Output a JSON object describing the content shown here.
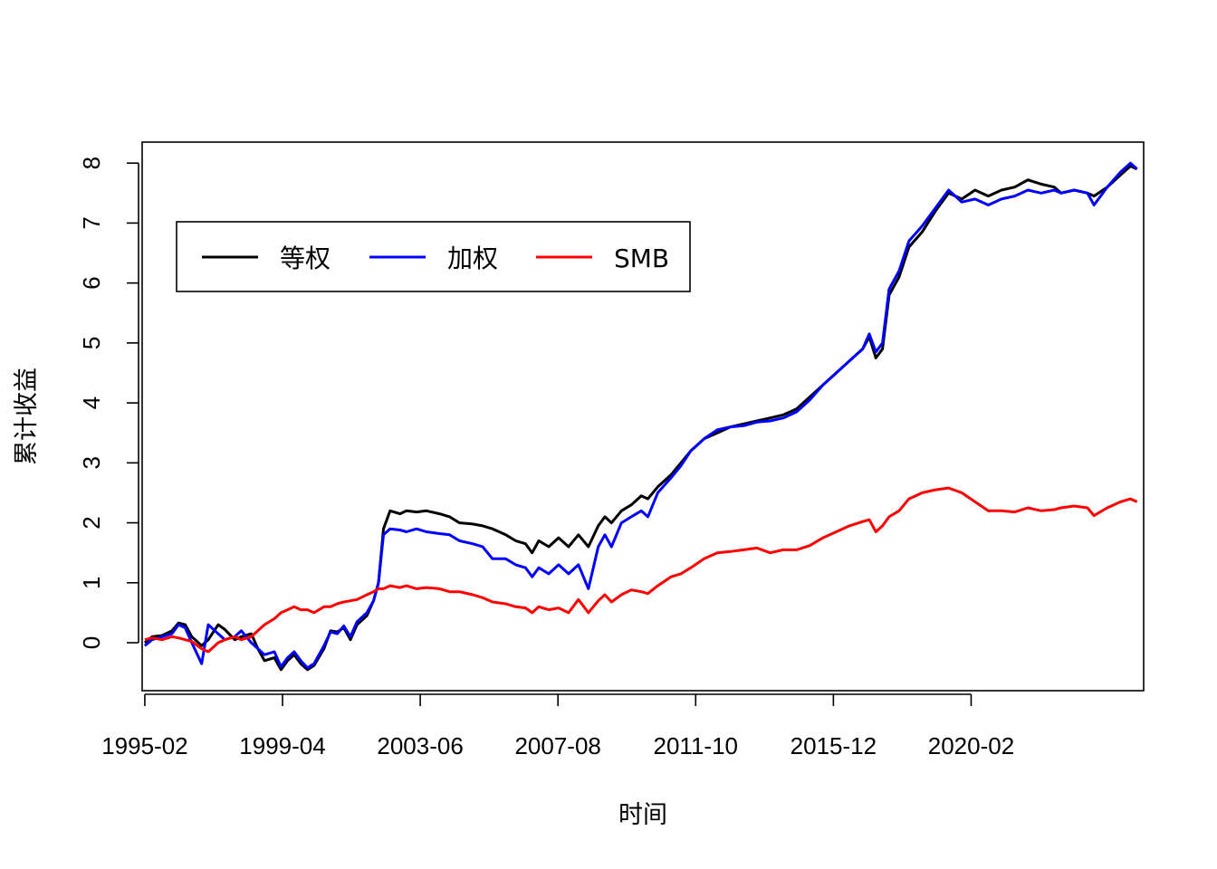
{
  "chart_data": {
    "type": "line",
    "xlabel": "时间",
    "ylabel": "累计收益",
    "x_tick_labels": [
      "1995-02",
      "1999-04",
      "2003-06",
      "2007-08",
      "2011-10",
      "2015-12",
      "2020-02"
    ],
    "y_ticks": [
      0,
      1,
      2,
      3,
      4,
      5,
      6,
      7,
      8
    ],
    "y_tick_labels": [
      "0",
      "1",
      "2",
      "3",
      "4",
      "5",
      "6",
      "7",
      "8"
    ],
    "xlim": [
      1995.0,
      2025.3
    ],
    "ylim": [
      -0.8,
      8.35
    ],
    "grid": false,
    "legend_position": "top-left",
    "series": [
      {
        "name": "等权",
        "color": "#000000",
        "points": [
          [
            1995.08,
            0.0
          ],
          [
            1995.3,
            0.1
          ],
          [
            1995.6,
            0.12
          ],
          [
            1995.9,
            0.2
          ],
          [
            1996.1,
            0.33
          ],
          [
            1996.3,
            0.3
          ],
          [
            1996.5,
            0.1
          ],
          [
            1996.8,
            -0.05
          ],
          [
            1997.0,
            0.05
          ],
          [
            1997.3,
            0.3
          ],
          [
            1997.5,
            0.22
          ],
          [
            1997.8,
            0.05
          ],
          [
            1998.0,
            0.1
          ],
          [
            1998.3,
            0.15
          ],
          [
            1998.5,
            -0.1
          ],
          [
            1998.7,
            -0.3
          ],
          [
            1999.0,
            -0.25
          ],
          [
            1999.2,
            -0.45
          ],
          [
            1999.4,
            -0.3
          ],
          [
            1999.6,
            -0.2
          ],
          [
            1999.8,
            -0.35
          ],
          [
            2000.0,
            -0.45
          ],
          [
            2000.2,
            -0.38
          ],
          [
            2000.5,
            -0.1
          ],
          [
            2000.7,
            0.2
          ],
          [
            2000.9,
            0.18
          ],
          [
            2001.1,
            0.25
          ],
          [
            2001.3,
            0.05
          ],
          [
            2001.5,
            0.3
          ],
          [
            2001.8,
            0.45
          ],
          [
            2002.0,
            0.7
          ],
          [
            2002.15,
            1.0
          ],
          [
            2002.3,
            1.9
          ],
          [
            2002.5,
            2.2
          ],
          [
            2002.8,
            2.15
          ],
          [
            2003.0,
            2.2
          ],
          [
            2003.3,
            2.18
          ],
          [
            2003.6,
            2.2
          ],
          [
            2004.0,
            2.15
          ],
          [
            2004.3,
            2.1
          ],
          [
            2004.6,
            2.0
          ],
          [
            2005.0,
            1.98
          ],
          [
            2005.3,
            1.95
          ],
          [
            2005.6,
            1.9
          ],
          [
            2006.0,
            1.8
          ],
          [
            2006.3,
            1.7
          ],
          [
            2006.6,
            1.65
          ],
          [
            2006.8,
            1.5
          ],
          [
            2007.0,
            1.7
          ],
          [
            2007.3,
            1.6
          ],
          [
            2007.6,
            1.75
          ],
          [
            2007.9,
            1.6
          ],
          [
            2008.2,
            1.8
          ],
          [
            2008.5,
            1.6
          ],
          [
            2008.8,
            1.95
          ],
          [
            2009.0,
            2.1
          ],
          [
            2009.2,
            2.0
          ],
          [
            2009.5,
            2.2
          ],
          [
            2009.8,
            2.3
          ],
          [
            2010.1,
            2.45
          ],
          [
            2010.3,
            2.4
          ],
          [
            2010.6,
            2.6
          ],
          [
            2011.0,
            2.8
          ],
          [
            2011.3,
            3.0
          ],
          [
            2011.6,
            3.2
          ],
          [
            2012.0,
            3.4
          ],
          [
            2012.4,
            3.5
          ],
          [
            2012.8,
            3.6
          ],
          [
            2013.2,
            3.65
          ],
          [
            2013.6,
            3.7
          ],
          [
            2014.0,
            3.75
          ],
          [
            2014.4,
            3.8
          ],
          [
            2014.8,
            3.9
          ],
          [
            2015.2,
            4.1
          ],
          [
            2015.6,
            4.3
          ],
          [
            2016.0,
            4.5
          ],
          [
            2016.4,
            4.7
          ],
          [
            2016.8,
            4.9
          ],
          [
            2017.0,
            5.1
          ],
          [
            2017.2,
            4.75
          ],
          [
            2017.4,
            4.9
          ],
          [
            2017.6,
            5.8
          ],
          [
            2017.9,
            6.1
          ],
          [
            2018.2,
            6.6
          ],
          [
            2018.6,
            6.85
          ],
          [
            2019.0,
            7.2
          ],
          [
            2019.4,
            7.5
          ],
          [
            2019.8,
            7.4
          ],
          [
            2020.2,
            7.55
          ],
          [
            2020.6,
            7.45
          ],
          [
            2021.0,
            7.55
          ],
          [
            2021.4,
            7.6
          ],
          [
            2021.8,
            7.72
          ],
          [
            2022.2,
            7.65
          ],
          [
            2022.6,
            7.6
          ],
          [
            2022.8,
            7.5
          ],
          [
            2023.2,
            7.55
          ],
          [
            2023.6,
            7.5
          ],
          [
            2023.8,
            7.45
          ],
          [
            2024.2,
            7.6
          ],
          [
            2024.6,
            7.8
          ],
          [
            2024.9,
            7.95
          ],
          [
            2025.1,
            7.9
          ]
        ]
      },
      {
        "name": "加权",
        "color": "#0000ff",
        "points": [
          [
            1995.08,
            -0.05
          ],
          [
            1995.3,
            0.05
          ],
          [
            1995.6,
            0.1
          ],
          [
            1995.9,
            0.15
          ],
          [
            1996.1,
            0.3
          ],
          [
            1996.3,
            0.25
          ],
          [
            1996.5,
            0.0
          ],
          [
            1996.8,
            -0.35
          ],
          [
            1997.0,
            0.3
          ],
          [
            1997.3,
            0.15
          ],
          [
            1997.5,
            0.05
          ],
          [
            1997.8,
            0.1
          ],
          [
            1998.0,
            0.2
          ],
          [
            1998.3,
            0.0
          ],
          [
            1998.5,
            -0.1
          ],
          [
            1998.7,
            -0.2
          ],
          [
            1999.0,
            -0.15
          ],
          [
            1999.2,
            -0.4
          ],
          [
            1999.4,
            -0.25
          ],
          [
            1999.6,
            -0.15
          ],
          [
            1999.8,
            -0.3
          ],
          [
            2000.0,
            -0.42
          ],
          [
            2000.2,
            -0.35
          ],
          [
            2000.5,
            -0.05
          ],
          [
            2000.7,
            0.18
          ],
          [
            2000.9,
            0.15
          ],
          [
            2001.1,
            0.28
          ],
          [
            2001.3,
            0.1
          ],
          [
            2001.5,
            0.35
          ],
          [
            2001.8,
            0.5
          ],
          [
            2002.0,
            0.7
          ],
          [
            2002.15,
            1.0
          ],
          [
            2002.3,
            1.8
          ],
          [
            2002.5,
            1.9
          ],
          [
            2002.8,
            1.88
          ],
          [
            2003.0,
            1.85
          ],
          [
            2003.3,
            1.9
          ],
          [
            2003.6,
            1.85
          ],
          [
            2004.0,
            1.82
          ],
          [
            2004.3,
            1.8
          ],
          [
            2004.6,
            1.7
          ],
          [
            2005.0,
            1.65
          ],
          [
            2005.3,
            1.6
          ],
          [
            2005.6,
            1.4
          ],
          [
            2006.0,
            1.4
          ],
          [
            2006.3,
            1.3
          ],
          [
            2006.6,
            1.25
          ],
          [
            2006.8,
            1.1
          ],
          [
            2007.0,
            1.25
          ],
          [
            2007.3,
            1.15
          ],
          [
            2007.6,
            1.3
          ],
          [
            2007.9,
            1.15
          ],
          [
            2008.2,
            1.3
          ],
          [
            2008.5,
            0.9
          ],
          [
            2008.8,
            1.6
          ],
          [
            2009.0,
            1.8
          ],
          [
            2009.2,
            1.6
          ],
          [
            2009.5,
            2.0
          ],
          [
            2009.8,
            2.1
          ],
          [
            2010.1,
            2.2
          ],
          [
            2010.3,
            2.1
          ],
          [
            2010.6,
            2.5
          ],
          [
            2011.0,
            2.75
          ],
          [
            2011.3,
            2.95
          ],
          [
            2011.6,
            3.2
          ],
          [
            2012.0,
            3.4
          ],
          [
            2012.4,
            3.55
          ],
          [
            2012.8,
            3.6
          ],
          [
            2013.2,
            3.62
          ],
          [
            2013.6,
            3.68
          ],
          [
            2014.0,
            3.7
          ],
          [
            2014.4,
            3.75
          ],
          [
            2014.8,
            3.85
          ],
          [
            2015.2,
            4.05
          ],
          [
            2015.6,
            4.3
          ],
          [
            2016.0,
            4.5
          ],
          [
            2016.4,
            4.7
          ],
          [
            2016.8,
            4.9
          ],
          [
            2017.0,
            5.15
          ],
          [
            2017.2,
            4.85
          ],
          [
            2017.4,
            5.0
          ],
          [
            2017.6,
            5.9
          ],
          [
            2017.9,
            6.2
          ],
          [
            2018.2,
            6.7
          ],
          [
            2018.6,
            6.95
          ],
          [
            2019.0,
            7.25
          ],
          [
            2019.4,
            7.55
          ],
          [
            2019.8,
            7.35
          ],
          [
            2020.2,
            7.4
          ],
          [
            2020.6,
            7.3
          ],
          [
            2021.0,
            7.4
          ],
          [
            2021.4,
            7.45
          ],
          [
            2021.8,
            7.55
          ],
          [
            2022.2,
            7.5
          ],
          [
            2022.6,
            7.55
          ],
          [
            2022.8,
            7.5
          ],
          [
            2023.2,
            7.55
          ],
          [
            2023.6,
            7.5
          ],
          [
            2023.8,
            7.3
          ],
          [
            2024.2,
            7.6
          ],
          [
            2024.6,
            7.85
          ],
          [
            2024.9,
            8.0
          ],
          [
            2025.1,
            7.9
          ]
        ]
      },
      {
        "name": "SMB",
        "color": "#ff0000",
        "points": [
          [
            1995.08,
            0.05
          ],
          [
            1995.3,
            0.08
          ],
          [
            1995.6,
            0.05
          ],
          [
            1995.9,
            0.1
          ],
          [
            1996.1,
            0.08
          ],
          [
            1996.3,
            0.05
          ],
          [
            1996.5,
            0.02
          ],
          [
            1996.8,
            -0.1
          ],
          [
            1997.0,
            -0.15
          ],
          [
            1997.3,
            0.0
          ],
          [
            1997.5,
            0.05
          ],
          [
            1997.8,
            0.1
          ],
          [
            1998.0,
            0.05
          ],
          [
            1998.3,
            0.1
          ],
          [
            1998.5,
            0.2
          ],
          [
            1998.7,
            0.3
          ],
          [
            1999.0,
            0.4
          ],
          [
            1999.2,
            0.5
          ],
          [
            1999.4,
            0.55
          ],
          [
            1999.6,
            0.6
          ],
          [
            1999.8,
            0.55
          ],
          [
            2000.0,
            0.55
          ],
          [
            2000.2,
            0.5
          ],
          [
            2000.5,
            0.6
          ],
          [
            2000.7,
            0.6
          ],
          [
            2000.9,
            0.65
          ],
          [
            2001.1,
            0.68
          ],
          [
            2001.3,
            0.7
          ],
          [
            2001.5,
            0.72
          ],
          [
            2001.8,
            0.8
          ],
          [
            2002.0,
            0.85
          ],
          [
            2002.15,
            0.9
          ],
          [
            2002.3,
            0.9
          ],
          [
            2002.5,
            0.95
          ],
          [
            2002.8,
            0.92
          ],
          [
            2003.0,
            0.95
          ],
          [
            2003.3,
            0.9
          ],
          [
            2003.6,
            0.92
          ],
          [
            2004.0,
            0.9
          ],
          [
            2004.3,
            0.85
          ],
          [
            2004.6,
            0.85
          ],
          [
            2005.0,
            0.8
          ],
          [
            2005.3,
            0.75
          ],
          [
            2005.6,
            0.68
          ],
          [
            2006.0,
            0.65
          ],
          [
            2006.3,
            0.6
          ],
          [
            2006.6,
            0.58
          ],
          [
            2006.8,
            0.5
          ],
          [
            2007.0,
            0.6
          ],
          [
            2007.3,
            0.55
          ],
          [
            2007.6,
            0.58
          ],
          [
            2007.9,
            0.5
          ],
          [
            2008.2,
            0.72
          ],
          [
            2008.5,
            0.5
          ],
          [
            2008.8,
            0.7
          ],
          [
            2009.0,
            0.8
          ],
          [
            2009.2,
            0.68
          ],
          [
            2009.5,
            0.8
          ],
          [
            2009.8,
            0.88
          ],
          [
            2010.1,
            0.85
          ],
          [
            2010.3,
            0.82
          ],
          [
            2010.6,
            0.95
          ],
          [
            2011.0,
            1.1
          ],
          [
            2011.3,
            1.15
          ],
          [
            2011.6,
            1.25
          ],
          [
            2012.0,
            1.4
          ],
          [
            2012.4,
            1.5
          ],
          [
            2012.8,
            1.52
          ],
          [
            2013.2,
            1.55
          ],
          [
            2013.6,
            1.58
          ],
          [
            2014.0,
            1.5
          ],
          [
            2014.4,
            1.55
          ],
          [
            2014.8,
            1.55
          ],
          [
            2015.2,
            1.62
          ],
          [
            2015.6,
            1.75
          ],
          [
            2016.0,
            1.85
          ],
          [
            2016.4,
            1.95
          ],
          [
            2016.8,
            2.02
          ],
          [
            2017.0,
            2.05
          ],
          [
            2017.2,
            1.85
          ],
          [
            2017.4,
            1.95
          ],
          [
            2017.6,
            2.1
          ],
          [
            2017.9,
            2.2
          ],
          [
            2018.2,
            2.4
          ],
          [
            2018.6,
            2.5
          ],
          [
            2019.0,
            2.55
          ],
          [
            2019.4,
            2.58
          ],
          [
            2019.8,
            2.5
          ],
          [
            2020.2,
            2.35
          ],
          [
            2020.6,
            2.2
          ],
          [
            2021.0,
            2.2
          ],
          [
            2021.4,
            2.18
          ],
          [
            2021.8,
            2.25
          ],
          [
            2022.2,
            2.2
          ],
          [
            2022.6,
            2.22
          ],
          [
            2022.8,
            2.25
          ],
          [
            2023.2,
            2.28
          ],
          [
            2023.6,
            2.25
          ],
          [
            2023.8,
            2.12
          ],
          [
            2024.2,
            2.25
          ],
          [
            2024.6,
            2.35
          ],
          [
            2024.9,
            2.4
          ],
          [
            2025.1,
            2.35
          ]
        ]
      }
    ]
  }
}
